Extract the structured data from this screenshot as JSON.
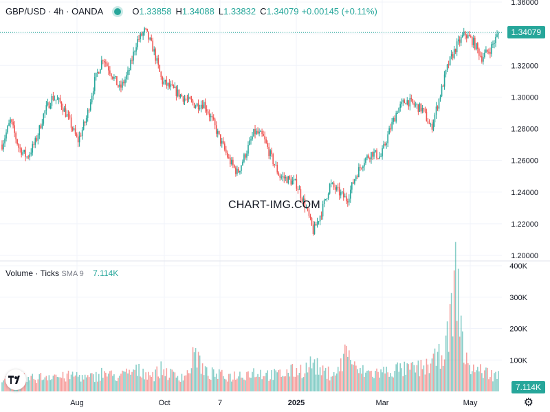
{
  "header": {
    "symbol": "GBP/USD · 4h · OANDA",
    "open_key": "O",
    "open_val": "1.33858",
    "high_key": "H",
    "high_val": "1.34088",
    "low_key": "L",
    "low_val": "1.33832",
    "close_key": "C",
    "close_val": "1.34079",
    "change": "+0.00145 (+0.11%)"
  },
  "volume_legend": {
    "label": "Volume · Ticks",
    "sma": "SMA 9",
    "value": "7.114K"
  },
  "watermark": "CHART-IMG.COM",
  "colors": {
    "up": "#26a69a",
    "down": "#ef5350",
    "grid": "#f0f3fa",
    "text": "#131722"
  },
  "chart_data": [
    {
      "type": "candlestick",
      "title": "GBP/USD · 4h · OANDA",
      "x_ticks": [
        "Aug",
        "Oct",
        "7",
        "2025",
        "Mar",
        "May"
      ],
      "y_ticks": [
        "1.20000",
        "1.22000",
        "1.24000",
        "1.26000",
        "1.28000",
        "1.30000",
        "1.32000",
        "1.34000",
        "1.36000"
      ],
      "ylim": [
        1.2,
        1.36
      ],
      "last_price": "1.34079",
      "grid": true,
      "series": [
        {
          "values": [
            1.27,
            1.285,
            1.268,
            1.262,
            1.272,
            1.29,
            1.3,
            1.296,
            1.285,
            1.272,
            1.286,
            1.31,
            1.325,
            1.315,
            1.305,
            1.315,
            1.335,
            1.342,
            1.33,
            1.31,
            1.306,
            1.302,
            1.298,
            1.295,
            1.296,
            1.285,
            1.272,
            1.26,
            1.252,
            1.265,
            1.278,
            1.275,
            1.262,
            1.25,
            1.248,
            1.245,
            1.232,
            1.215,
            1.228,
            1.245,
            1.24,
            1.235,
            1.25,
            1.26,
            1.265,
            1.262,
            1.278,
            1.292,
            1.298,
            1.295,
            1.292,
            1.28,
            1.3,
            1.32,
            1.332,
            1.34,
            1.335,
            1.325,
            1.33,
            1.34
          ]
        }
      ]
    },
    {
      "type": "bar",
      "title": "Volume · Ticks",
      "y_ticks": [
        "100K",
        "200K",
        "300K",
        "400K"
      ],
      "ylim": [
        0,
        400000
      ],
      "last_value": "7.114K",
      "series": [
        {
          "values": [
            40000,
            45000,
            50000,
            38000,
            42000,
            47000,
            55000,
            44000,
            48000,
            52000,
            41000,
            46000,
            60000,
            50000,
            47000,
            58000,
            65000,
            62000,
            52000,
            70000,
            54000,
            49000,
            53000,
            125000,
            60000,
            55000,
            50000,
            48000,
            52000,
            57000,
            62000,
            58000,
            51000,
            54000,
            60000,
            66000,
            70000,
            92000,
            60000,
            58000,
            63000,
            140000,
            66000,
            62000,
            58000,
            60000,
            64000,
            70000,
            68000,
            72000,
            74000,
            88000,
            110000,
            165000,
            370000,
            95000,
            72000,
            65000,
            55000,
            50000
          ]
        }
      ]
    }
  ]
}
